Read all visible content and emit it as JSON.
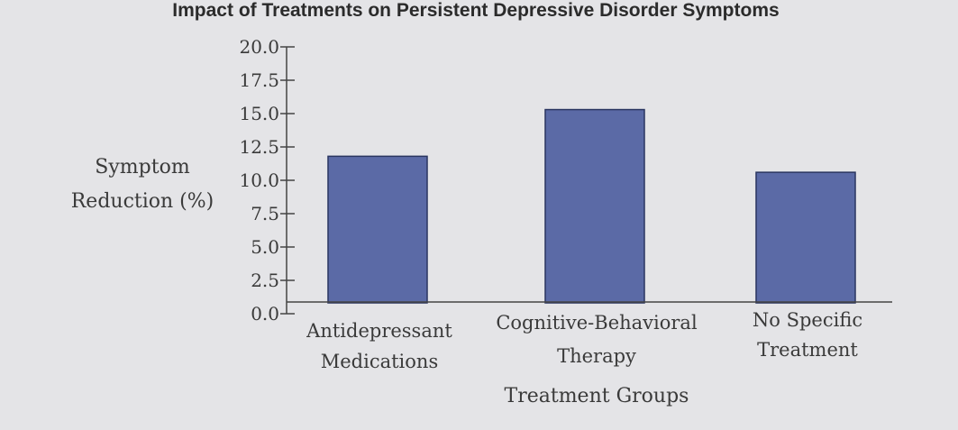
{
  "chart_data": {
    "type": "bar",
    "title": "Impact of Treatments on Persistent Depressive Disorder Symptoms",
    "xlabel": "Treatment Groups",
    "ylabel_lines": [
      "Symptom",
      "Reduction (%)"
    ],
    "categories": [
      [
        "Antidepressant",
        "Medications"
      ],
      [
        "Cognitive-Behavioral",
        "Therapy"
      ],
      [
        "No Specific",
        "Treatment"
      ]
    ],
    "values": [
      11.8,
      15.3,
      10.6
    ],
    "ylim": [
      0,
      20
    ],
    "yticks": [
      "0.0",
      "2.5",
      "5.0",
      "7.5",
      "10.0",
      "12.5",
      "15.0",
      "17.5",
      "20.0"
    ],
    "bar_color": "#5b6aa6",
    "grid": false,
    "legend": "none"
  }
}
